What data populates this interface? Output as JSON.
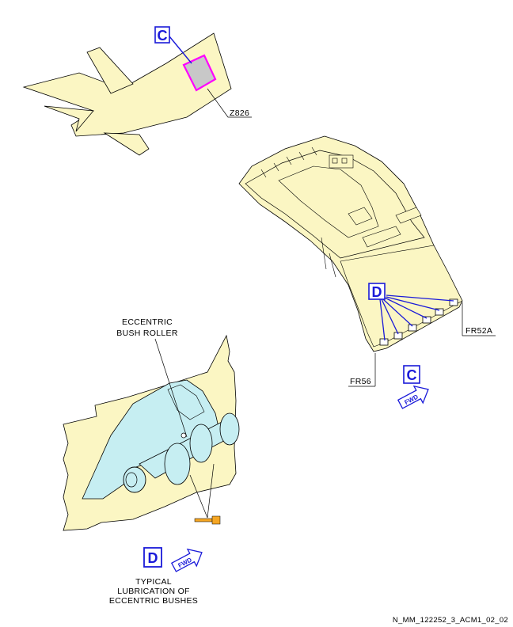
{
  "labels": {
    "zone": "Z826",
    "frame_aft": "FR52A",
    "frame_fwd": "FR56",
    "eccentric_line1": "ECCENTRIC",
    "eccentric_line2": "BUSH ROLLER",
    "typical_line1": "TYPICAL",
    "typical_line2": "LUBRICATION OF",
    "typical_line3": "ECCENTRIC BUSHES",
    "footer_code": "N_MM_122252_3_ACM1_02_02"
  },
  "view_refs": {
    "c_aircraft": "C",
    "d_door": "D",
    "c_door": "C",
    "d_detail": "D"
  },
  "fwd_arrows": {
    "door_view": "FWD",
    "detail_view": "FWD"
  },
  "colors": {
    "structure_fill": "#fbf6c3",
    "bush_fill": "#c6eef2",
    "callout_blue": "#1a1ad9",
    "highlight_magenta": "#ff00ff",
    "lube_orange": "#f5a623"
  }
}
